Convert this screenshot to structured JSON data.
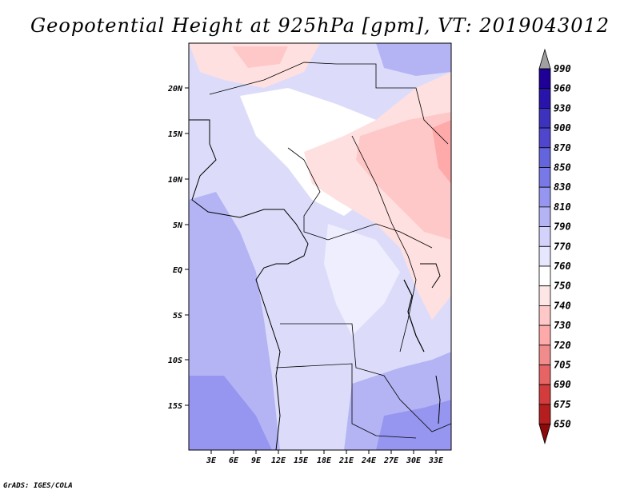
{
  "title": "Geopotential Height at 925hPa [gpm], VT: 2019043012",
  "credit": "GrADS: IGES/COLA",
  "map": {
    "lat_labels": [
      "20N",
      "15N",
      "10N",
      "5N",
      "EQ",
      "5S",
      "10S",
      "15S"
    ],
    "lon_labels": [
      "3E",
      "6E",
      "9E",
      "12E",
      "15E",
      "18E",
      "21E",
      "24E",
      "27E",
      "30E",
      "33E"
    ]
  },
  "colorbar": {
    "levels": [
      "990",
      "960",
      "930",
      "900",
      "870",
      "850",
      "830",
      "810",
      "790",
      "770",
      "760",
      "750",
      "740",
      "730",
      "720",
      "705",
      "690",
      "675",
      "650"
    ],
    "colors": [
      "#a0a0a0",
      "#1e0096",
      "#2814aa",
      "#3c32be",
      "#5046cd",
      "#6464dc",
      "#7878e6",
      "#9696f0",
      "#b4b4f5",
      "#d2d2fa",
      "#e6e6ff",
      "#ffffff",
      "#ffe6e6",
      "#ffc8c8",
      "#ffaaaa",
      "#f08c8c",
      "#e66464",
      "#d23c3c",
      "#b41e1e",
      "#8c0a0a"
    ]
  }
}
